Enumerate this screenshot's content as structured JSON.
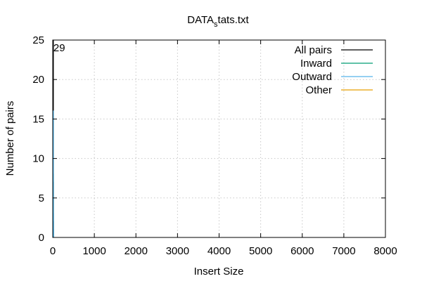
{
  "chart_data": {
    "type": "line",
    "title_main": "DATA",
    "title_sub": "s",
    "title_rest": "tats.txt",
    "xlabel": "Insert Size",
    "ylabel": "Number of pairs",
    "xlim": [
      0,
      8000
    ],
    "ylim": [
      0,
      25
    ],
    "xticks": [
      0,
      1000,
      2000,
      3000,
      4000,
      5000,
      6000,
      7000,
      8000
    ],
    "yticks": [
      0,
      5,
      10,
      15,
      20,
      25
    ],
    "grid": true,
    "legend_position": "top-right",
    "annotation": {
      "text": "29",
      "x": 15,
      "y": 24
    },
    "series": [
      {
        "name": "All pairs",
        "color": "#000000",
        "x": [
          10,
          10,
          12,
          12,
          14,
          14,
          16,
          16,
          18,
          18,
          20,
          20
        ],
        "y": [
          0,
          29,
          29,
          7,
          7,
          2,
          2,
          1,
          1,
          0,
          0,
          0
        ]
      },
      {
        "name": "Inward",
        "color": "#009e73",
        "x": [
          12,
          12,
          14,
          14,
          16,
          16,
          18,
          18
        ],
        "y": [
          0,
          8,
          8,
          1,
          1,
          0,
          0,
          0
        ]
      },
      {
        "name": "Outward",
        "color": "#56b4e9",
        "x": [
          13,
          13,
          15,
          15,
          17,
          17,
          19,
          19
        ],
        "y": [
          0,
          16,
          16,
          3,
          3,
          1,
          1,
          0
        ]
      },
      {
        "name": "Other",
        "color": "#e69f00",
        "x": [
          14,
          14,
          16,
          16
        ],
        "y": [
          0,
          0,
          0,
          0
        ]
      }
    ]
  }
}
